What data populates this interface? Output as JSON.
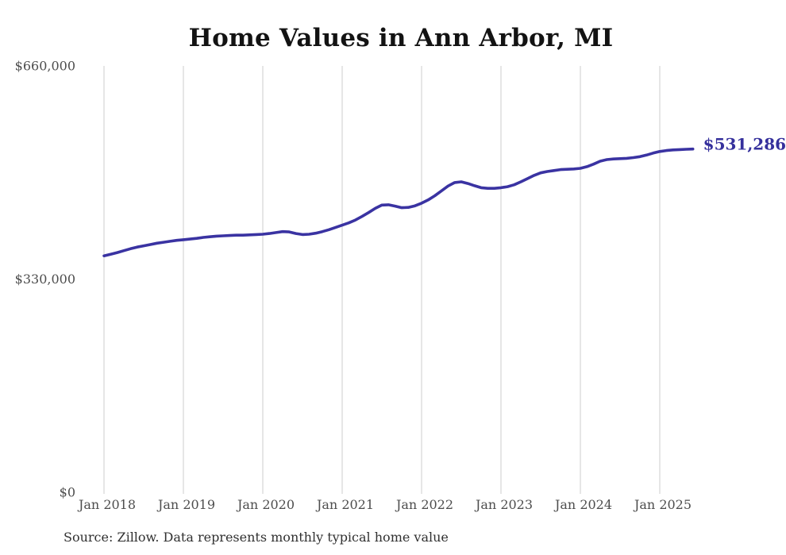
{
  "title": "Home Values in Ann Arbor, MI",
  "source_note": "Source: Zillow. Data represents monthly typical home value",
  "end_label": "$531,286",
  "colors": {
    "line": "#3a33a2",
    "end_label": "#35309c",
    "grid": "#cdcdcd",
    "title": "#131313",
    "axis_text": "#4d4d4d",
    "source_text": "#303030",
    "background": "#ffffff"
  },
  "chart_data": {
    "type": "line",
    "title": "Home Values in Ann Arbor, MI",
    "xlabel": "",
    "ylabel": "",
    "x_start": "Jan 2018",
    "x_end": "Jun 2025",
    "frequency": "monthly",
    "x_tick_labels": [
      "Jan 2018",
      "Jan 2019",
      "Jan 2020",
      "Jan 2021",
      "Jan 2022",
      "Jan 2023",
      "Jan 2024",
      "Jan 2025"
    ],
    "y_ticks": [
      0,
      330000,
      660000
    ],
    "y_tick_labels": [
      "$0",
      "$330,000",
      "$660,000"
    ],
    "ylim": [
      0,
      660000
    ],
    "grid": "vertical-only",
    "legend": "none",
    "final_value": 531286,
    "final_value_label": "$531,286",
    "series": [
      {
        "name": "Typical home value",
        "values": [
          366000,
          368500,
          371000,
          374000,
          377000,
          379500,
          381500,
          383500,
          385500,
          387000,
          388500,
          390000,
          391000,
          392000,
          393000,
          394500,
          395500,
          396500,
          397000,
          397500,
          398000,
          398000,
          398500,
          399000,
          399500,
          400500,
          402000,
          403500,
          403000,
          400500,
          399000,
          399500,
          401000,
          403500,
          406500,
          410000,
          413500,
          417000,
          421500,
          427000,
          433000,
          439500,
          444500,
          445000,
          443000,
          440500,
          441000,
          443500,
          447500,
          452500,
          459000,
          466500,
          474000,
          479500,
          480500,
          478000,
          474500,
          471500,
          470500,
          470500,
          471500,
          473000,
          476000,
          480500,
          485500,
          490500,
          494500,
          496500,
          498000,
          499500,
          500000,
          500500,
          501500,
          504000,
          508000,
          512500,
          515000,
          516000,
          516500,
          517000,
          518000,
          519500,
          522000,
          525000,
          527500,
          529000,
          530000,
          530500,
          531000,
          531286
        ]
      }
    ]
  }
}
